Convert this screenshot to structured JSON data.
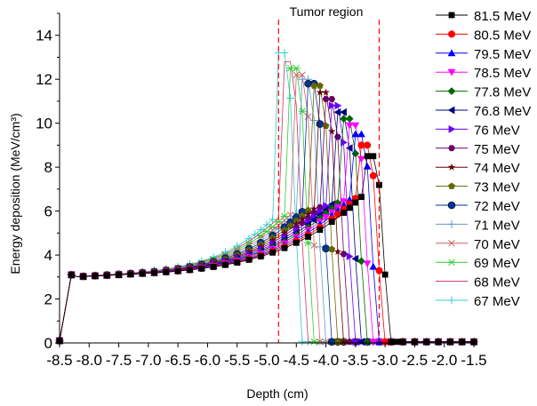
{
  "chart_data": {
    "type": "line",
    "title": "",
    "xlabel": "Depth (cm)",
    "ylabel": "Energy deposition (MeV/cm³)",
    "xlim": [
      -8.5,
      -1.5
    ],
    "ylim": [
      0,
      15
    ],
    "xticks": [
      "-8.5",
      "-8.0",
      "-7.5",
      "-7.0",
      "-6.5",
      "-6.0",
      "-5.5",
      "-5.0",
      "-4.5",
      "-4.0",
      "-3.5",
      "-3.0",
      "-2.5",
      "-2.0",
      "-1.5"
    ],
    "yticks": [
      "0",
      "2",
      "4",
      "6",
      "8",
      "10",
      "12",
      "14"
    ],
    "annotation": "Tumor region",
    "tumor_region": [
      -4.8,
      -3.1
    ],
    "legend_position": "right",
    "series": [
      {
        "name": "81.5 MeV",
        "color": "#000000",
        "marker": "square",
        "peak_depth": -3.2,
        "peak_value": 8.5
      },
      {
        "name": "80.5 MeV",
        "color": "#ff0000",
        "marker": "circle",
        "peak_depth": -3.3,
        "peak_value": 9.0
      },
      {
        "name": "79.5 MeV",
        "color": "#0000ff",
        "marker": "triangle-up",
        "peak_depth": -3.4,
        "peak_value": 9.5
      },
      {
        "name": "78.5 MeV",
        "color": "#ff00ff",
        "marker": "triangle-down",
        "peak_depth": -3.5,
        "peak_value": 9.9
      },
      {
        "name": "77.8 MeV",
        "color": "#006600",
        "marker": "diamond",
        "peak_depth": -3.6,
        "peak_value": 10.2
      },
      {
        "name": "76.8 MeV",
        "color": "#000080",
        "marker": "triangle-left",
        "peak_depth": -3.7,
        "peak_value": 10.5
      },
      {
        "name": "76 MeV",
        "color": "#6600ff",
        "marker": "triangle-right",
        "peak_depth": -3.8,
        "peak_value": 10.8
      },
      {
        "name": "75 MeV",
        "color": "#660066",
        "marker": "hexagon",
        "peak_depth": -3.9,
        "peak_value": 11.1
      },
      {
        "name": "74 MeV",
        "color": "#660000",
        "marker": "star",
        "peak_depth": -4.0,
        "peak_value": 11.4
      },
      {
        "name": "73 MeV",
        "color": "#666600",
        "marker": "pentagon",
        "peak_depth": -4.1,
        "peak_value": 11.7
      },
      {
        "name": "72 MeV",
        "color": "#003399",
        "marker": "circle-dark",
        "peak_depth": -4.2,
        "peak_value": 11.8
      },
      {
        "name": "71 MeV",
        "color": "#6699cc",
        "marker": "plus",
        "peak_depth": -4.3,
        "peak_value": 12.0
      },
      {
        "name": "70 MeV",
        "color": "#cc6666",
        "marker": "x",
        "peak_depth": -4.4,
        "peak_value": 12.2
      },
      {
        "name": "69 MeV",
        "color": "#33cc33",
        "marker": "asterisk",
        "peak_depth": -4.5,
        "peak_value": 12.5
      },
      {
        "name": "68 MeV",
        "color": "#cc3366",
        "marker": "none",
        "peak_depth": -4.6,
        "peak_value": 12.8
      },
      {
        "name": "67 MeV",
        "color": "#33cccc",
        "marker": "plus",
        "peak_depth": -4.7,
        "peak_value": 13.2
      }
    ]
  }
}
